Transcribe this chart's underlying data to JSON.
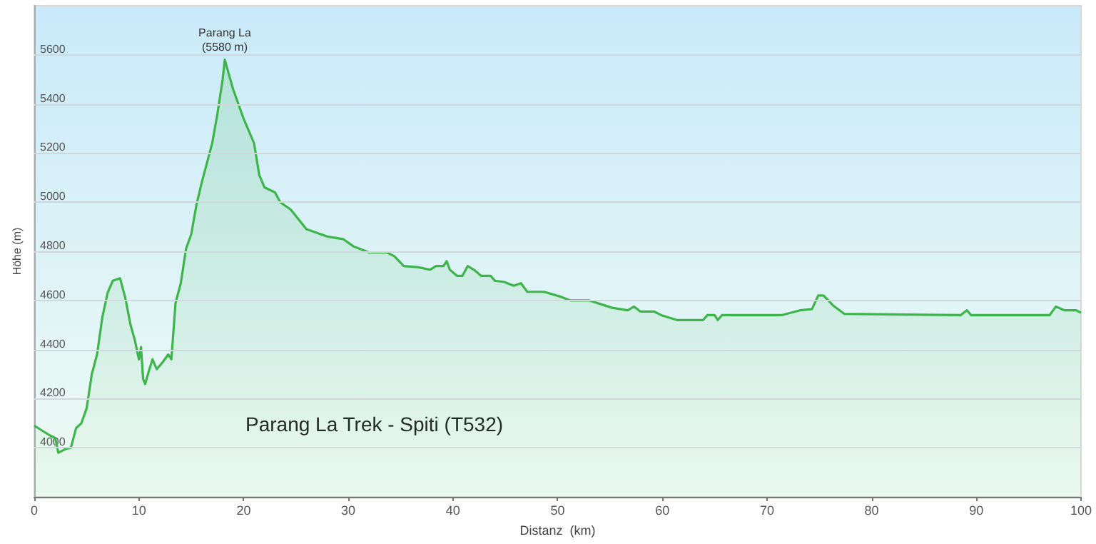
{
  "chart_data": {
    "type": "area",
    "xlabel": "Distanz  (km)",
    "ylabel": "Höhe (m)",
    "annotations": [
      {
        "text": "Parang La\n(5580 m)",
        "x": 18.2,
        "y": 5580
      },
      "Parang La Trek - Spiti (T532)"
    ],
    "x": [
      0,
      1.5,
      2,
      2.3,
      3,
      3.5,
      4,
      4.5,
      5,
      5.5,
      6,
      6.5,
      7,
      7.5,
      8.2,
      8.7,
      9.2,
      9.6,
      10,
      10.2,
      10.4,
      10.6,
      11,
      11.3,
      11.7,
      12.3,
      12.8,
      13.1,
      13.5,
      14,
      14.5,
      15,
      15.5,
      16,
      17,
      17.5,
      18,
      18.2,
      19,
      20,
      21,
      21.5,
      22,
      23,
      23.5,
      24.5,
      26,
      28,
      29.5,
      30.5,
      32,
      33.7,
      34.4,
      35.3,
      36.7,
      37.8,
      38.4,
      39.1,
      39.4,
      39.7,
      40.4,
      40.9,
      41.4,
      42,
      42.7,
      43.6,
      44,
      44.9,
      45.8,
      46.5,
      47.1,
      48.7,
      50.3,
      51.2,
      53,
      55.2,
      56.7,
      57.3,
      57.9,
      59.2,
      59.9,
      61.4,
      63.9,
      64.3,
      65,
      65.3,
      65.7,
      71.4,
      73.2,
      74.3,
      74.9,
      75.4,
      76.3,
      77.4,
      88.5,
      89.1,
      89.5,
      97,
      97.6,
      98.4,
      99.5,
      100
    ],
    "series": [
      {
        "color": "#3db54a",
        "values": [
          4090,
          4050,
          4040,
          3980,
          3995,
          4000,
          4080,
          4100,
          4160,
          4300,
          4380,
          4530,
          4630,
          4680,
          4690,
          4610,
          4500,
          4440,
          4360,
          4410,
          4280,
          4260,
          4320,
          4360,
          4320,
          4350,
          4380,
          4360,
          4590,
          4670,
          4810,
          4870,
          4990,
          5080,
          5240,
          5360,
          5500,
          5580,
          5460,
          5340,
          5240,
          5110,
          5060,
          5040,
          5000,
          4970,
          4890,
          4860,
          4850,
          4820,
          4795,
          4795,
          4780,
          4740,
          4735,
          4725,
          4740,
          4740,
          4760,
          4725,
          4700,
          4700,
          4740,
          4725,
          4700,
          4700,
          4680,
          4675,
          4660,
          4670,
          4635,
          4635,
          4615,
          4600,
          4600,
          4570,
          4560,
          4575,
          4555,
          4555,
          4540,
          4520,
          4520,
          4540,
          4540,
          4520,
          4540,
          4540,
          4560,
          4565,
          4620,
          4620,
          4580,
          4545,
          4540,
          4560,
          4540,
          4540,
          4575,
          4560,
          4560,
          4550
        ]
      }
    ],
    "xlim": [
      0,
      100
    ],
    "xticks": [
      0,
      10,
      20,
      30,
      40,
      50,
      60,
      70,
      80,
      90,
      100
    ],
    "ylim": [
      3800,
      5800
    ],
    "yticks": [
      4000,
      4200,
      4400,
      4600,
      4800,
      5000,
      5200,
      5400,
      5600
    ],
    "grid": "y",
    "marker": "none",
    "line_style": "solid"
  }
}
